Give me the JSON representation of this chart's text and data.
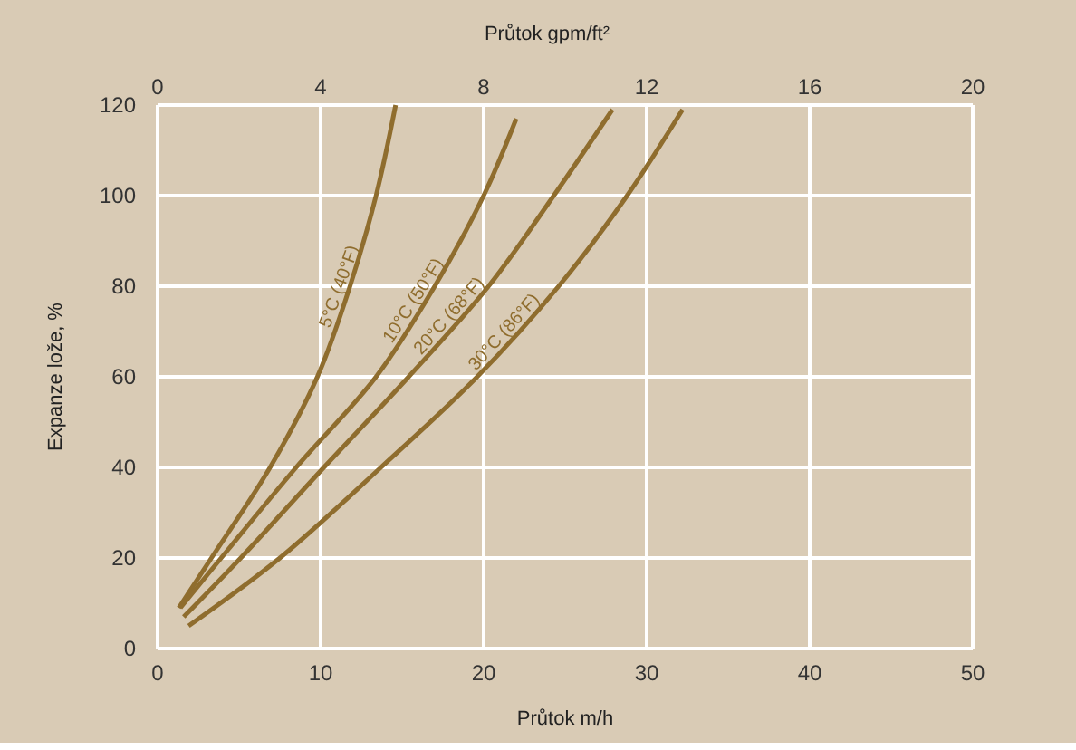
{
  "chart_data": {
    "type": "line",
    "xlabel": "Průtok m/h",
    "ylabel": "Expanze lože, %",
    "x2label": "Průtok gpm/ft²",
    "xlim": [
      0,
      50
    ],
    "xticks": [
      0,
      10,
      20,
      30,
      40,
      50
    ],
    "x2lim": [
      0,
      20
    ],
    "x2ticks": [
      0,
      4,
      8,
      12,
      16,
      20
    ],
    "ylim": [
      0,
      120
    ],
    "yticks": [
      0,
      20,
      40,
      60,
      80,
      100,
      120
    ],
    "grid": true,
    "legend": false,
    "marker": "none",
    "line_style": "solid",
    "series": [
      {
        "name": "5°C (40°F)",
        "color": "#8f6d2e",
        "x": [
          1.3,
          3.3,
          6.9,
          9.8,
          11.8,
          13.4,
          14.6
        ],
        "values": [
          9,
          20,
          40,
          60,
          80,
          100,
          120
        ]
      },
      {
        "name": "10°C (50°F)",
        "color": "#8f6d2e",
        "x": [
          1.4,
          3.9,
          8.5,
          13.4,
          17.0,
          20.0,
          22.0
        ],
        "values": [
          9,
          20,
          40,
          60,
          80,
          100,
          117
        ]
      },
      {
        "name": "20°C (68°F)",
        "color": "#8f6d2e",
        "x": [
          1.6,
          5.1,
          10.2,
          15.4,
          20.3,
          24.3,
          27.9
        ],
        "values": [
          7,
          20,
          40,
          60,
          80,
          100,
          119
        ]
      },
      {
        "name": "30°C (86°F)",
        "color": "#8f6d2e",
        "x": [
          1.9,
          7.5,
          13.7,
          19.6,
          24.6,
          28.8,
          32.2
        ],
        "values": [
          5,
          20,
          40,
          60,
          80,
          100,
          119
        ]
      }
    ]
  }
}
